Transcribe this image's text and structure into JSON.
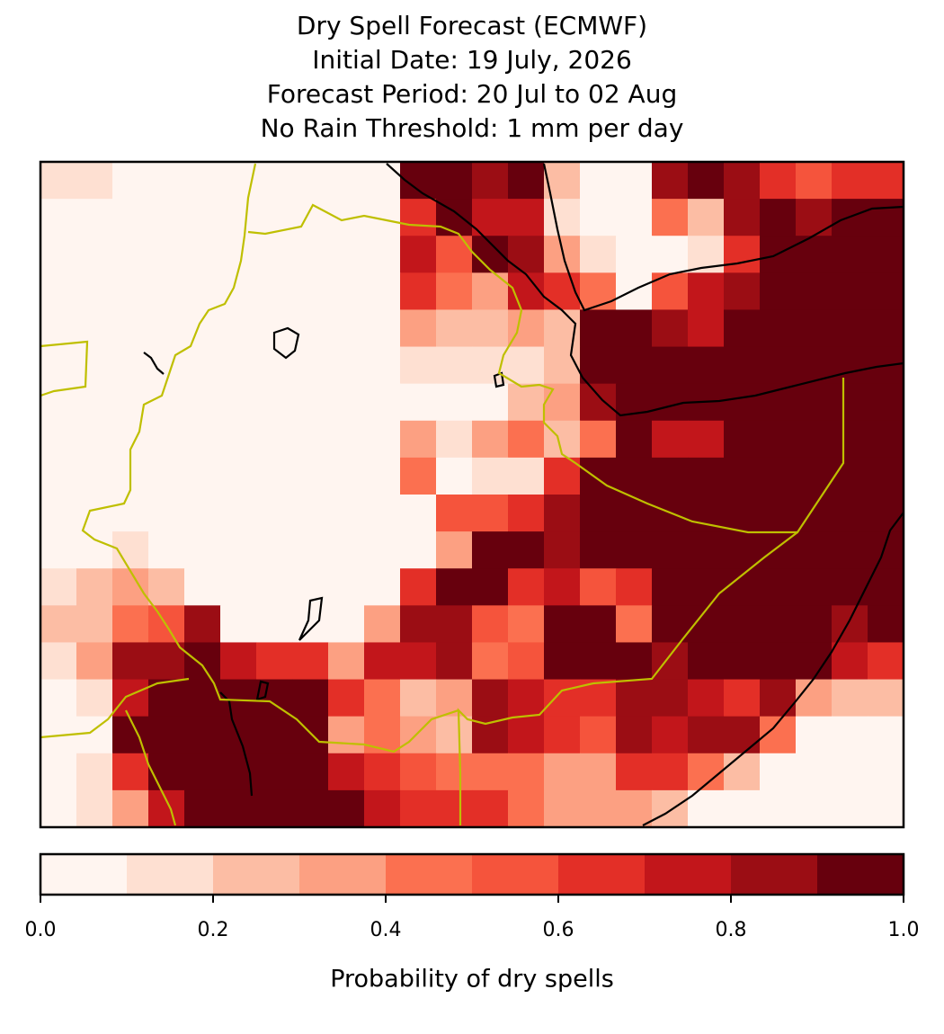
{
  "chart_data": {
    "type": "raster-map",
    "title": "Dry Spell Forecast (ECMWF)",
    "subtitle_lines": [
      "Initial Date: 19 July, 2026",
      "Forecast Period: 20 Jul to 02 Aug",
      "No Rain Threshold: 1 mm per day"
    ],
    "grid": [
      [
        0.15,
        0.15,
        0.05,
        0.05,
        0.05,
        0.05,
        0.05,
        0.05,
        0.05,
        0.05,
        0.95,
        0.95,
        0.85,
        0.95,
        0.25,
        0.05,
        0.05,
        0.85,
        0.95,
        0.85,
        0.65,
        0.55,
        0.65,
        0.65
      ],
      [
        0.05,
        0.05,
        0.05,
        0.05,
        0.05,
        0.05,
        0.05,
        0.05,
        0.05,
        0.05,
        0.65,
        0.95,
        0.75,
        0.75,
        0.15,
        0.05,
        0.05,
        0.45,
        0.25,
        0.85,
        0.95,
        0.85,
        0.95,
        0.95
      ],
      [
        0.05,
        0.05,
        0.05,
        0.05,
        0.05,
        0.05,
        0.05,
        0.05,
        0.05,
        0.05,
        0.75,
        0.55,
        0.95,
        0.85,
        0.35,
        0.15,
        0.05,
        0.05,
        0.15,
        0.65,
        0.95,
        0.95,
        0.95,
        0.95
      ],
      [
        0.05,
        0.05,
        0.05,
        0.05,
        0.05,
        0.05,
        0.05,
        0.05,
        0.05,
        0.05,
        0.65,
        0.45,
        0.35,
        0.75,
        0.65,
        0.45,
        0.05,
        0.55,
        0.75,
        0.85,
        0.95,
        0.95,
        0.95,
        0.95
      ],
      [
        0.05,
        0.05,
        0.05,
        0.05,
        0.05,
        0.05,
        0.05,
        0.05,
        0.05,
        0.05,
        0.35,
        0.25,
        0.25,
        0.35,
        0.25,
        0.95,
        0.95,
        0.85,
        0.75,
        0.95,
        0.95,
        0.95,
        0.95,
        0.95
      ],
      [
        0.05,
        0.05,
        0.05,
        0.05,
        0.05,
        0.05,
        0.05,
        0.05,
        0.05,
        0.05,
        0.15,
        0.15,
        0.15,
        0.15,
        0.25,
        0.95,
        0.95,
        0.95,
        0.95,
        0.95,
        0.95,
        0.95,
        0.95,
        0.95
      ],
      [
        0.05,
        0.05,
        0.05,
        0.05,
        0.05,
        0.05,
        0.05,
        0.05,
        0.05,
        0.05,
        0.05,
        0.05,
        0.05,
        0.25,
        0.35,
        0.85,
        0.95,
        0.95,
        0.95,
        0.95,
        0.95,
        0.95,
        0.95,
        0.95
      ],
      [
        0.05,
        0.05,
        0.05,
        0.05,
        0.05,
        0.05,
        0.05,
        0.05,
        0.05,
        0.05,
        0.35,
        0.15,
        0.35,
        0.45,
        0.25,
        0.45,
        0.95,
        0.75,
        0.75,
        0.95,
        0.95,
        0.95,
        0.95,
        0.95
      ],
      [
        0.05,
        0.05,
        0.05,
        0.05,
        0.05,
        0.05,
        0.05,
        0.05,
        0.05,
        0.05,
        0.45,
        0.05,
        0.15,
        0.15,
        0.65,
        0.95,
        0.95,
        0.95,
        0.95,
        0.95,
        0.95,
        0.95,
        0.95,
        0.95
      ],
      [
        0.05,
        0.05,
        0.05,
        0.05,
        0.05,
        0.05,
        0.05,
        0.05,
        0.05,
        0.05,
        0.05,
        0.55,
        0.55,
        0.65,
        0.85,
        0.95,
        0.95,
        0.95,
        0.95,
        0.95,
        0.95,
        0.95,
        0.95,
        0.95
      ],
      [
        0.05,
        0.05,
        0.15,
        0.05,
        0.05,
        0.05,
        0.05,
        0.05,
        0.05,
        0.05,
        0.05,
        0.35,
        0.95,
        0.95,
        0.85,
        0.95,
        0.95,
        0.95,
        0.95,
        0.95,
        0.95,
        0.95,
        0.95,
        0.95
      ],
      [
        0.15,
        0.25,
        0.35,
        0.25,
        0.05,
        0.05,
        0.05,
        0.05,
        0.05,
        0.05,
        0.65,
        0.95,
        0.95,
        0.65,
        0.75,
        0.55,
        0.65,
        0.95,
        0.95,
        0.95,
        0.95,
        0.95,
        0.95,
        0.95
      ],
      [
        0.25,
        0.25,
        0.45,
        0.55,
        0.85,
        0.05,
        0.05,
        0.05,
        0.05,
        0.35,
        0.85,
        0.85,
        0.55,
        0.45,
        0.95,
        0.95,
        0.45,
        0.95,
        0.95,
        0.95,
        0.95,
        0.95,
        0.85,
        0.95
      ],
      [
        0.15,
        0.35,
        0.85,
        0.85,
        0.95,
        0.75,
        0.65,
        0.65,
        0.35,
        0.75,
        0.75,
        0.85,
        0.45,
        0.55,
        0.95,
        0.95,
        0.95,
        0.85,
        0.95,
        0.95,
        0.95,
        0.95,
        0.75,
        0.65
      ],
      [
        0.05,
        0.15,
        0.75,
        0.95,
        0.95,
        0.95,
        0.95,
        0.95,
        0.65,
        0.45,
        0.25,
        0.35,
        0.85,
        0.75,
        0.65,
        0.65,
        0.85,
        0.85,
        0.75,
        0.65,
        0.85,
        0.35,
        0.25,
        0.25
      ],
      [
        0.05,
        0.05,
        0.95,
        0.95,
        0.95,
        0.95,
        0.95,
        0.95,
        0.35,
        0.45,
        0.35,
        0.25,
        0.85,
        0.75,
        0.65,
        0.55,
        0.85,
        0.75,
        0.85,
        0.85,
        0.45,
        0.05,
        0.05,
        0.05
      ],
      [
        0.05,
        0.15,
        0.65,
        0.95,
        0.95,
        0.95,
        0.95,
        0.95,
        0.75,
        0.65,
        0.55,
        0.45,
        0.45,
        0.45,
        0.35,
        0.35,
        0.65,
        0.65,
        0.45,
        0.25,
        0.05,
        0.05,
        0.05,
        0.05
      ],
      [
        0.05,
        0.15,
        0.35,
        0.75,
        0.95,
        0.95,
        0.95,
        0.95,
        0.95,
        0.75,
        0.65,
        0.65,
        0.65,
        0.45,
        0.35,
        0.35,
        0.35,
        0.25,
        0.05,
        0.05,
        0.05,
        0.05,
        0.05,
        0.05
      ]
    ],
    "colorbar": {
      "bounds": [
        0,
        0.1,
        0.2,
        0.3,
        0.4,
        0.5,
        0.6,
        0.7,
        0.8,
        0.9,
        1
      ],
      "colors": [
        "#fff5f0",
        "#fee0d2",
        "#fcbda4",
        "#fca082",
        "#fb7050",
        "#f5543c",
        "#e32f27",
        "#c2161b",
        "#9b0d14",
        "#67000d"
      ],
      "ticks": [
        {
          "value": 0,
          "label": "0.0"
        },
        {
          "value": 0.2,
          "label": "0.2"
        },
        {
          "value": 0.4,
          "label": "0.4"
        },
        {
          "value": 0.6,
          "label": "0.6"
        },
        {
          "value": 0.8,
          "label": "0.8"
        },
        {
          "value": 1,
          "label": "1.0"
        }
      ],
      "label": "Probability of dry spells"
    }
  }
}
